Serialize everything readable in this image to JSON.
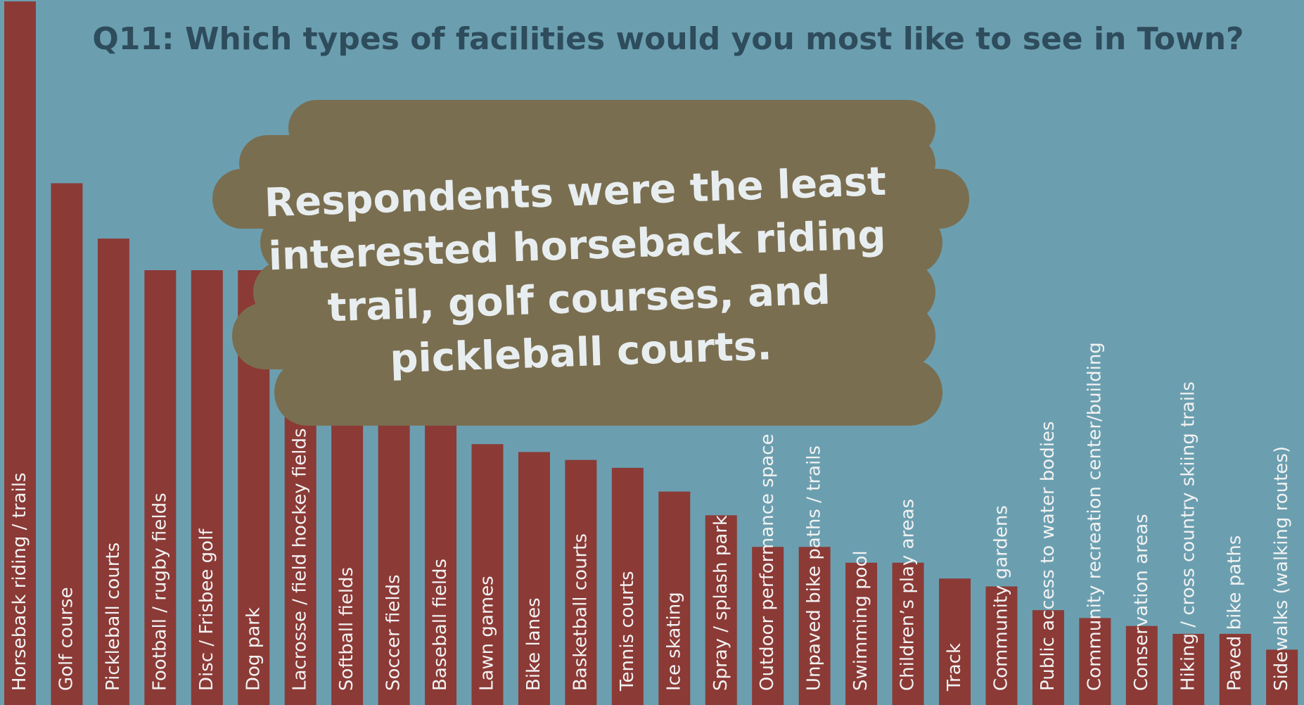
{
  "chart_data": {
    "type": "bar",
    "title": "Q11: Which types of facilities would you most like to see in Town?",
    "categories": [
      "Horseback riding / trails",
      "Golf course",
      "Pickleball courts",
      "Football / rugby fields",
      "Disc / Frisbee golf",
      "Dog park",
      "Lacrosse / field hockey fields",
      "Softball fields",
      "Soccer fields",
      "Baseball fields",
      "Lawn games",
      "Bike lanes",
      "Basketball courts",
      "Tennis courts",
      "Ice skating",
      "Spray / splash park",
      "Outdoor performance space",
      "Unpaved bike paths / trails",
      "Swimming pool",
      "Children’s play areas",
      "Track",
      "Community gardens",
      "Public access to water bodies",
      "Community recreation center/building",
      "Conservation areas",
      "Hiking / cross country skiing trails",
      "Paved bike paths",
      "Sidewalks (walking routes)"
    ],
    "values": [
      89,
      66,
      59,
      55,
      55,
      55,
      44,
      41,
      40,
      37,
      33,
      32,
      31,
      30,
      27,
      24,
      20,
      20,
      18,
      18,
      16,
      15,
      12,
      11,
      10,
      9,
      9,
      7
    ],
    "color": "#8b3a36",
    "ylim": [
      0,
      89
    ],
    "annotation": [
      "Respondents were the least",
      "interested horseback riding",
      "trail, golf courses, and",
      "pickleball courts."
    ]
  }
}
